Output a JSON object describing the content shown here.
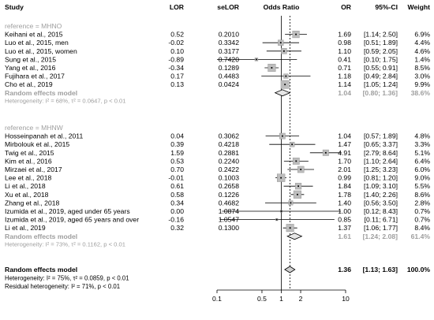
{
  "chart_data": {
    "type": "forest",
    "title": "",
    "headers": {
      "study": "Study",
      "lor": "LOR",
      "selor": "seLOR",
      "odds_ratio": "Odds Ratio",
      "or": "OR",
      "ci": "95%-CI",
      "weight": "Weight"
    },
    "x_axis": {
      "scale": "log",
      "ticks": [
        0.1,
        0.5,
        1,
        2,
        10
      ],
      "tick_labels": [
        "0.1",
        "0.5",
        "1",
        "2",
        "10"
      ],
      "range": [
        0.1,
        10
      ],
      "reference_line": 1,
      "overall_estimate_line": 1.36
    },
    "groups": [
      {
        "label": "reference = MHNO",
        "studies": [
          {
            "study": "Keihani et al., 2015",
            "lor": "0.52",
            "selor": "0.2010",
            "or": "1.69",
            "ci": "[1.14; 2.50]",
            "weight": "6.9%",
            "or_value": 1.69,
            "lower": 1.14,
            "upper": 2.5,
            "w": 6.9
          },
          {
            "study": "Luo et al., 2015, men",
            "lor": "-0.02",
            "selor": "0.3342",
            "or": "0.98",
            "ci": "[0.51; 1.89]",
            "weight": "4.4%",
            "or_value": 0.98,
            "lower": 0.51,
            "upper": 1.89,
            "w": 4.4
          },
          {
            "study": "Luo et al., 2015, women",
            "lor": "0.10",
            "selor": "0.3177",
            "or": "1.10",
            "ci": "[0.59; 2.05]",
            "weight": "4.6%",
            "or_value": 1.1,
            "lower": 0.59,
            "upper": 2.05,
            "w": 4.6
          },
          {
            "study": "Sung et al., 2015",
            "lor": "-0.89",
            "selor": "0.7420",
            "or": "0.41",
            "ci": "[0.10; 1.75]",
            "weight": "1.4%",
            "or_value": 0.41,
            "lower": 0.1,
            "upper": 1.75,
            "w": 1.4
          },
          {
            "study": "Yang et al., 2016",
            "lor": "-0.34",
            "selor": "0.1289",
            "or": "0.71",
            "ci": "[0.55; 0.91]",
            "weight": "8.5%",
            "or_value": 0.71,
            "lower": 0.55,
            "upper": 0.91,
            "w": 8.5
          },
          {
            "study": "Fujihara et al., 2017",
            "lor": "0.17",
            "selor": "0.4483",
            "or": "1.18",
            "ci": "[0.49; 2.84]",
            "weight": "3.0%",
            "or_value": 1.18,
            "lower": 0.49,
            "upper": 2.84,
            "w": 3.0
          },
          {
            "study": "Cho et al., 2019",
            "lor": "0.13",
            "selor": "0.0424",
            "or": "1.14",
            "ci": "[1.05; 1.24]",
            "weight": "9.9%",
            "or_value": 1.14,
            "lower": 1.05,
            "upper": 1.24,
            "w": 9.9
          }
        ],
        "summary": {
          "label": "Random effects model",
          "or": "1.04",
          "ci": "[0.80; 1.36]",
          "weight": "38.6%",
          "or_value": 1.04,
          "lower": 0.8,
          "upper": 1.36
        },
        "heterogeneity": "Heterogeneity: I² = 68%, τ² = 0.0647, p < 0.01"
      },
      {
        "label": "reference = MHNW",
        "studies": [
          {
            "study": "Hosseinpanah et al., 2011",
            "lor": "0.04",
            "selor": "0.3062",
            "or": "1.04",
            "ci": "[0.57; 1.89]",
            "weight": "4.8%",
            "or_value": 1.04,
            "lower": 0.57,
            "upper": 1.89,
            "w": 4.8
          },
          {
            "study": "Mirbolouk et al., 2015",
            "lor": "0.39",
            "selor": "0.4218",
            "or": "1.47",
            "ci": "[0.65; 3.37]",
            "weight": "3.3%",
            "or_value": 1.47,
            "lower": 0.65,
            "upper": 3.37,
            "w": 3.3
          },
          {
            "study": "Twig et al., 2015",
            "lor": "1.59",
            "selor": "0.2881",
            "or": "4.91",
            "ci": "[2.79; 8.64]",
            "weight": "5.1%",
            "or_value": 4.91,
            "lower": 2.79,
            "upper": 8.64,
            "w": 5.1
          },
          {
            "study": "Kim et al., 2016",
            "lor": "0.53",
            "selor": "0.2240",
            "or": "1.70",
            "ci": "[1.10; 2.64]",
            "weight": "6.4%",
            "or_value": 1.7,
            "lower": 1.1,
            "upper": 2.64,
            "w": 6.4
          },
          {
            "study": "Mirzaei et al., 2017",
            "lor": "0.70",
            "selor": "0.2422",
            "or": "2.01",
            "ci": "[1.25; 3.23]",
            "weight": "6.0%",
            "or_value": 2.01,
            "lower": 1.25,
            "upper": 3.23,
            "w": 6.0
          },
          {
            "study": "Lee et al., 2018",
            "lor": "-0.01",
            "selor": "0.1003",
            "or": "0.99",
            "ci": "[0.81; 1.20]",
            "weight": "9.0%",
            "or_value": 0.99,
            "lower": 0.81,
            "upper": 1.2,
            "w": 9.0
          },
          {
            "study": "Li et al., 2018",
            "lor": "0.61",
            "selor": "0.2658",
            "or": "1.84",
            "ci": "[1.09; 3.10]",
            "weight": "5.5%",
            "or_value": 1.84,
            "lower": 1.09,
            "upper": 3.1,
            "w": 5.5
          },
          {
            "study": "Xu et al., 2018",
            "lor": "0.58",
            "selor": "0.1226",
            "or": "1.78",
            "ci": "[1.40; 2.26]",
            "weight": "8.6%",
            "or_value": 1.78,
            "lower": 1.4,
            "upper": 2.26,
            "w": 8.6
          },
          {
            "study": "Zhang et al., 2018",
            "lor": "0.34",
            "selor": "0.4682",
            "or": "1.40",
            "ci": "[0.56; 3.50]",
            "weight": "2.8%",
            "or_value": 1.4,
            "lower": 0.56,
            "upper": 3.5,
            "w": 2.8
          },
          {
            "study": "Izumida et al., 2019, aged under 65 years",
            "lor": "0.00",
            "selor": "1.0874",
            "or": "1.00",
            "ci": "[0.12; 8.43]",
            "weight": "0.7%",
            "or_value": 1.0,
            "lower": 0.12,
            "upper": 8.43,
            "w": 0.7
          },
          {
            "study": "Izumida et al., 2019, aged 65 years and over",
            "lor": "-0.16",
            "selor": "1.0547",
            "or": "0.85",
            "ci": "[0.11; 6.71]",
            "weight": "0.7%",
            "or_value": 0.85,
            "lower": 0.11,
            "upper": 6.71,
            "w": 0.7
          },
          {
            "study": "Li et al., 2019",
            "lor": "0.32",
            "selor": "0.1300",
            "or": "1.37",
            "ci": "[1.06; 1.77]",
            "weight": "8.4%",
            "or_value": 1.37,
            "lower": 1.06,
            "upper": 1.77,
            "w": 8.4
          }
        ],
        "summary": {
          "label": "Random effects model",
          "or": "1.61",
          "ci": "[1.24; 2.08]",
          "weight": "61.4%",
          "or_value": 1.61,
          "lower": 1.24,
          "upper": 2.08
        },
        "heterogeneity": "Heterogeneity: I² = 73%, τ² = 0.1162, p < 0.01"
      }
    ],
    "overall": {
      "label": "Random effects model",
      "or": "1.36",
      "ci": "[1.13; 1.63]",
      "weight": "100.0%",
      "or_value": 1.36,
      "lower": 1.13,
      "upper": 1.63,
      "heterogeneity": "Heterogeneity: I² = 75%, τ² = 0.0859, p < 0.01",
      "residual_heterogeneity": "Residual heterogeneity: I² = 71%, p < 0.01"
    },
    "colors": {
      "text": "#000000",
      "subgroup_text": "#9e9e9e",
      "box_fill": "#bdbdbd",
      "box_stroke": "#8a8a8a",
      "diamond_sub_fill": "#e6e6e6",
      "diamond_overall_fill": "#cfcfcf"
    }
  }
}
